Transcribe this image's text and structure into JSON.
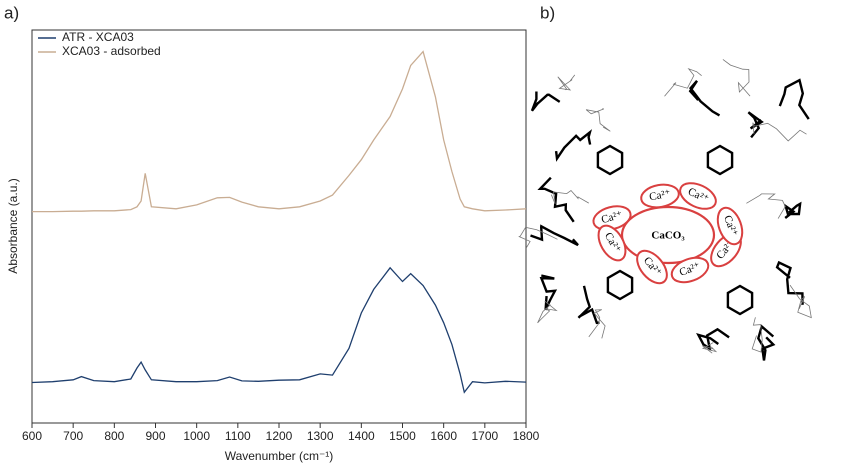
{
  "chart_data": {
    "type": "line",
    "panel_label": "a)",
    "x_label": "Wavenumber (cm⁻¹)",
    "y_label": "Absorbance (a.u.)",
    "x": [
      600,
      650,
      700,
      720,
      750,
      800,
      840,
      855,
      865,
      875,
      890,
      950,
      1000,
      1050,
      1080,
      1110,
      1150,
      1200,
      1250,
      1300,
      1330,
      1370,
      1400,
      1430,
      1470,
      1500,
      1520,
      1550,
      1580,
      1600,
      1620,
      1640,
      1650,
      1670,
      1700,
      1750,
      1800
    ],
    "series": [
      {
        "name": "ATR - XCA03",
        "color": "#1f3f6e",
        "values": [
          10.3,
          10.5,
          11.0,
          11.8,
          10.8,
          10.5,
          11.2,
          14.0,
          15.5,
          13.5,
          11.0,
          10.5,
          10.5,
          10.8,
          11.7,
          10.7,
          10.6,
          10.9,
          11.0,
          12.5,
          12.2,
          19.0,
          28.0,
          34.0,
          39.5,
          36.0,
          38.0,
          35.0,
          30.0,
          25.5,
          20.0,
          12.5,
          7.8,
          10.5,
          10.2,
          10.6,
          10.4
        ]
      },
      {
        "name": "XCA03 - adsorbed",
        "color": "#c9ad93",
        "values": [
          53.8,
          53.8,
          53.9,
          53.9,
          54.0,
          54.0,
          54.3,
          55.0,
          56.5,
          63.5,
          55.0,
          54.5,
          55.5,
          57.3,
          57.4,
          56.2,
          55.0,
          54.5,
          55.0,
          56.5,
          58.0,
          63.0,
          67.0,
          72.0,
          78.0,
          85.0,
          91.0,
          94.5,
          83.0,
          72.0,
          64.0,
          57.0,
          55.0,
          54.5,
          54.0,
          54.2,
          54.5
        ]
      }
    ],
    "xlim": [
      600,
      1800
    ],
    "xticks": [
      600,
      700,
      800,
      900,
      1000,
      1100,
      1200,
      1300,
      1400,
      1500,
      1600,
      1700,
      1800
    ],
    "ylim": [
      0,
      100
    ],
    "legend": "top-left"
  },
  "diagram": {
    "panel_label": "b)",
    "center": "CaCO₃",
    "ions": [
      "Ca²⁺",
      "Ca²⁺",
      "Ca²⁺",
      "Ca²⁺",
      "Ca²⁺",
      "Ca²⁺",
      "Ca²⁺",
      "Ca²⁺"
    ]
  }
}
